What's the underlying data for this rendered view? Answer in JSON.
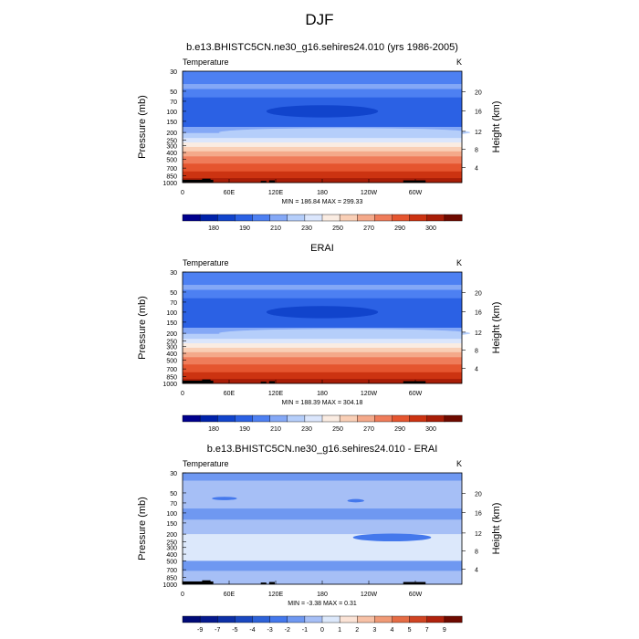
{
  "figure_title": "DJF",
  "colors": {
    "abs_levels": [
      "#00008d",
      "#0022aa",
      "#1144cc",
      "#2b61e4",
      "#4d80f2",
      "#84a8f6",
      "#b5cefa",
      "#dbe6fc",
      "#faece2",
      "#f9cfb6",
      "#f4a98a",
      "#ef7c5a",
      "#e5552f",
      "#cc3311",
      "#a81d07",
      "#6e0a00"
    ],
    "diff_levels": [
      "#000a77",
      "#061a8e",
      "#0d30a6",
      "#1a48c0",
      "#2d62d8",
      "#4478ec",
      "#6f98f1",
      "#a6bff6",
      "#dce8fb",
      "#fbe3d6",
      "#f7c1a6",
      "#f09a76",
      "#e56c45",
      "#d04422",
      "#b0220d",
      "#6e0a00"
    ]
  },
  "chart_data": [
    {
      "type": "heatmap",
      "panel_title": "b.e13.BHISTC5CN.ne30_g16.sehires24.010 (yrs 1986-2005)",
      "left_label": "Temperature",
      "right_label": "K",
      "ylabel": "Pressure (mb)",
      "y2label": "Height (km)",
      "xtick_labels": [
        "0",
        "60E",
        "120E",
        "180",
        "120W",
        "60W"
      ],
      "ytick_labels": [
        "30",
        "50",
        "70",
        "100",
        "150",
        "200",
        "250",
        "300",
        "400",
        "500",
        "700",
        "850",
        "1000"
      ],
      "y2tick_labels": [
        "20",
        "16",
        "12",
        "8",
        "4"
      ],
      "stats": "MIN = 186.84  MAX = 299.33",
      "colorbar_labels": [
        "180",
        "190",
        "210",
        "230",
        "250",
        "270",
        "290",
        "300"
      ],
      "min": 186.84,
      "max": 299.33
    },
    {
      "type": "heatmap",
      "panel_title": "ERAI",
      "left_label": "Temperature",
      "right_label": "K",
      "ylabel": "Pressure (mb)",
      "y2label": "Height (km)",
      "xtick_labels": [
        "0",
        "60E",
        "120E",
        "180",
        "120W",
        "60W"
      ],
      "ytick_labels": [
        "30",
        "50",
        "70",
        "100",
        "150",
        "200",
        "250",
        "300",
        "400",
        "500",
        "700",
        "850",
        "1000"
      ],
      "y2tick_labels": [
        "20",
        "16",
        "12",
        "8",
        "4"
      ],
      "stats": "MIN = 188.39  MAX = 304.18",
      "colorbar_labels": [
        "180",
        "190",
        "210",
        "230",
        "250",
        "270",
        "290",
        "300"
      ],
      "min": 188.39,
      "max": 304.18
    },
    {
      "type": "heatmap",
      "panel_title": "b.e13.BHISTC5CN.ne30_g16.sehires24.010 - ERAI",
      "left_label": "Temperature",
      "right_label": "K",
      "ylabel": "Pressure (mb)",
      "y2label": "Height (km)",
      "xtick_labels": [
        "0",
        "60E",
        "120E",
        "180",
        "120W",
        "60W"
      ],
      "ytick_labels": [
        "30",
        "50",
        "70",
        "100",
        "150",
        "200",
        "250",
        "300",
        "400",
        "500",
        "700",
        "850",
        "1000"
      ],
      "y2tick_labels": [
        "20",
        "16",
        "12",
        "8",
        "4"
      ],
      "stats": "MIN =  -3.38  MAX =   0.31",
      "colorbar_labels": [
        "-9",
        "-7",
        "-5",
        "-4",
        "-3",
        "-2",
        "-1",
        "0",
        "1",
        "2",
        "3",
        "4",
        "5",
        "7",
        "9"
      ],
      "min": -3.38,
      "max": 0.31
    }
  ]
}
